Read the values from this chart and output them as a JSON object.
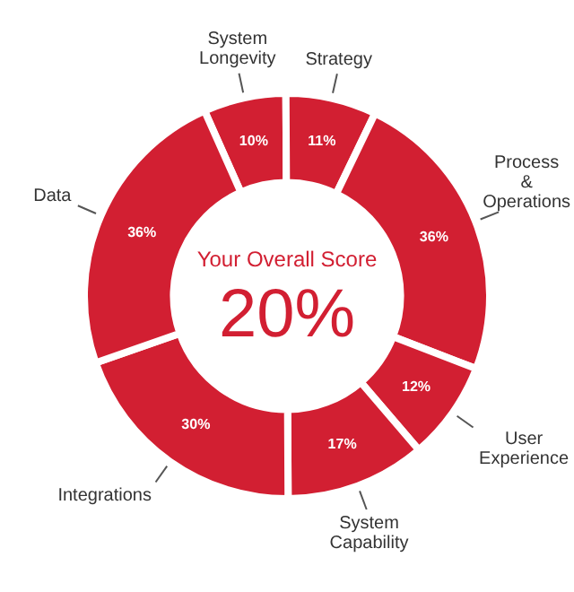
{
  "chart_data": {
    "type": "donut",
    "categories": [
      "System Longevity",
      "Strategy",
      "Process & Operations",
      "User Experience",
      "System Capability",
      "Integrations",
      "Data"
    ],
    "values": [
      10,
      11,
      36,
      12,
      17,
      30,
      36
    ],
    "value_labels": [
      "10%",
      "11%",
      "36%",
      "12%",
      "17%",
      "30%",
      "36%"
    ],
    "colors": [
      "#d21f32",
      "#d21f32",
      "#d21f32",
      "#d21f32",
      "#d21f32",
      "#d21f32",
      "#d21f32"
    ],
    "annotations": [
      "Your Overall Score",
      "20%"
    ],
    "legend": false
  }
}
